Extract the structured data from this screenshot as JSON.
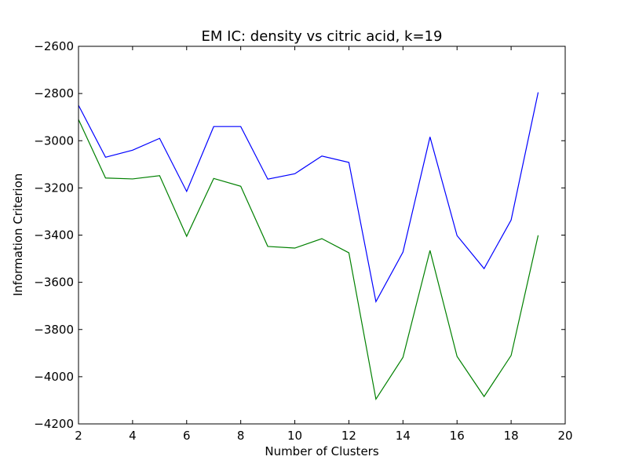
{
  "chart_data": {
    "type": "line",
    "title": "EM IC: density vs citric acid, k=19",
    "xlabel": "Number of Clusters",
    "ylabel": "Information Criterion",
    "xlim": [
      2,
      20
    ],
    "ylim": [
      -4200,
      -2600
    ],
    "xticks": [
      2,
      4,
      6,
      8,
      10,
      12,
      14,
      16,
      18,
      20
    ],
    "yticks": [
      -2600,
      -2800,
      -3000,
      -3200,
      -3400,
      -3600,
      -3800,
      -4000,
      -4200
    ],
    "xtick_labels": [
      "2",
      "4",
      "6",
      "8",
      "10",
      "12",
      "14",
      "16",
      "18",
      "20"
    ],
    "ytick_labels": [
      "−2600",
      "−2800",
      "−3000",
      "−3200",
      "−3400",
      "−3600",
      "−3800",
      "−4000",
      "−4200"
    ],
    "grid": false,
    "x": [
      2,
      3,
      4,
      5,
      6,
      7,
      8,
      9,
      10,
      11,
      12,
      13,
      14,
      15,
      16,
      17,
      18,
      19
    ],
    "series": [
      {
        "color": "#0000ff",
        "values": [
          -2850,
          -3070,
          -3040,
          -2990,
          -3215,
          -2940,
          -2940,
          -3163,
          -3140,
          -3065,
          -3092,
          -3682,
          -3472,
          -2984,
          -3402,
          -3542,
          -3336,
          -2795
        ]
      },
      {
        "color": "#008000",
        "values": [
          -2910,
          -3158,
          -3162,
          -3148,
          -3405,
          -3160,
          -3193,
          -3448,
          -3455,
          -3415,
          -3475,
          -4095,
          -3918,
          -3465,
          -3914,
          -4084,
          -3910,
          -3401
        ]
      }
    ]
  }
}
